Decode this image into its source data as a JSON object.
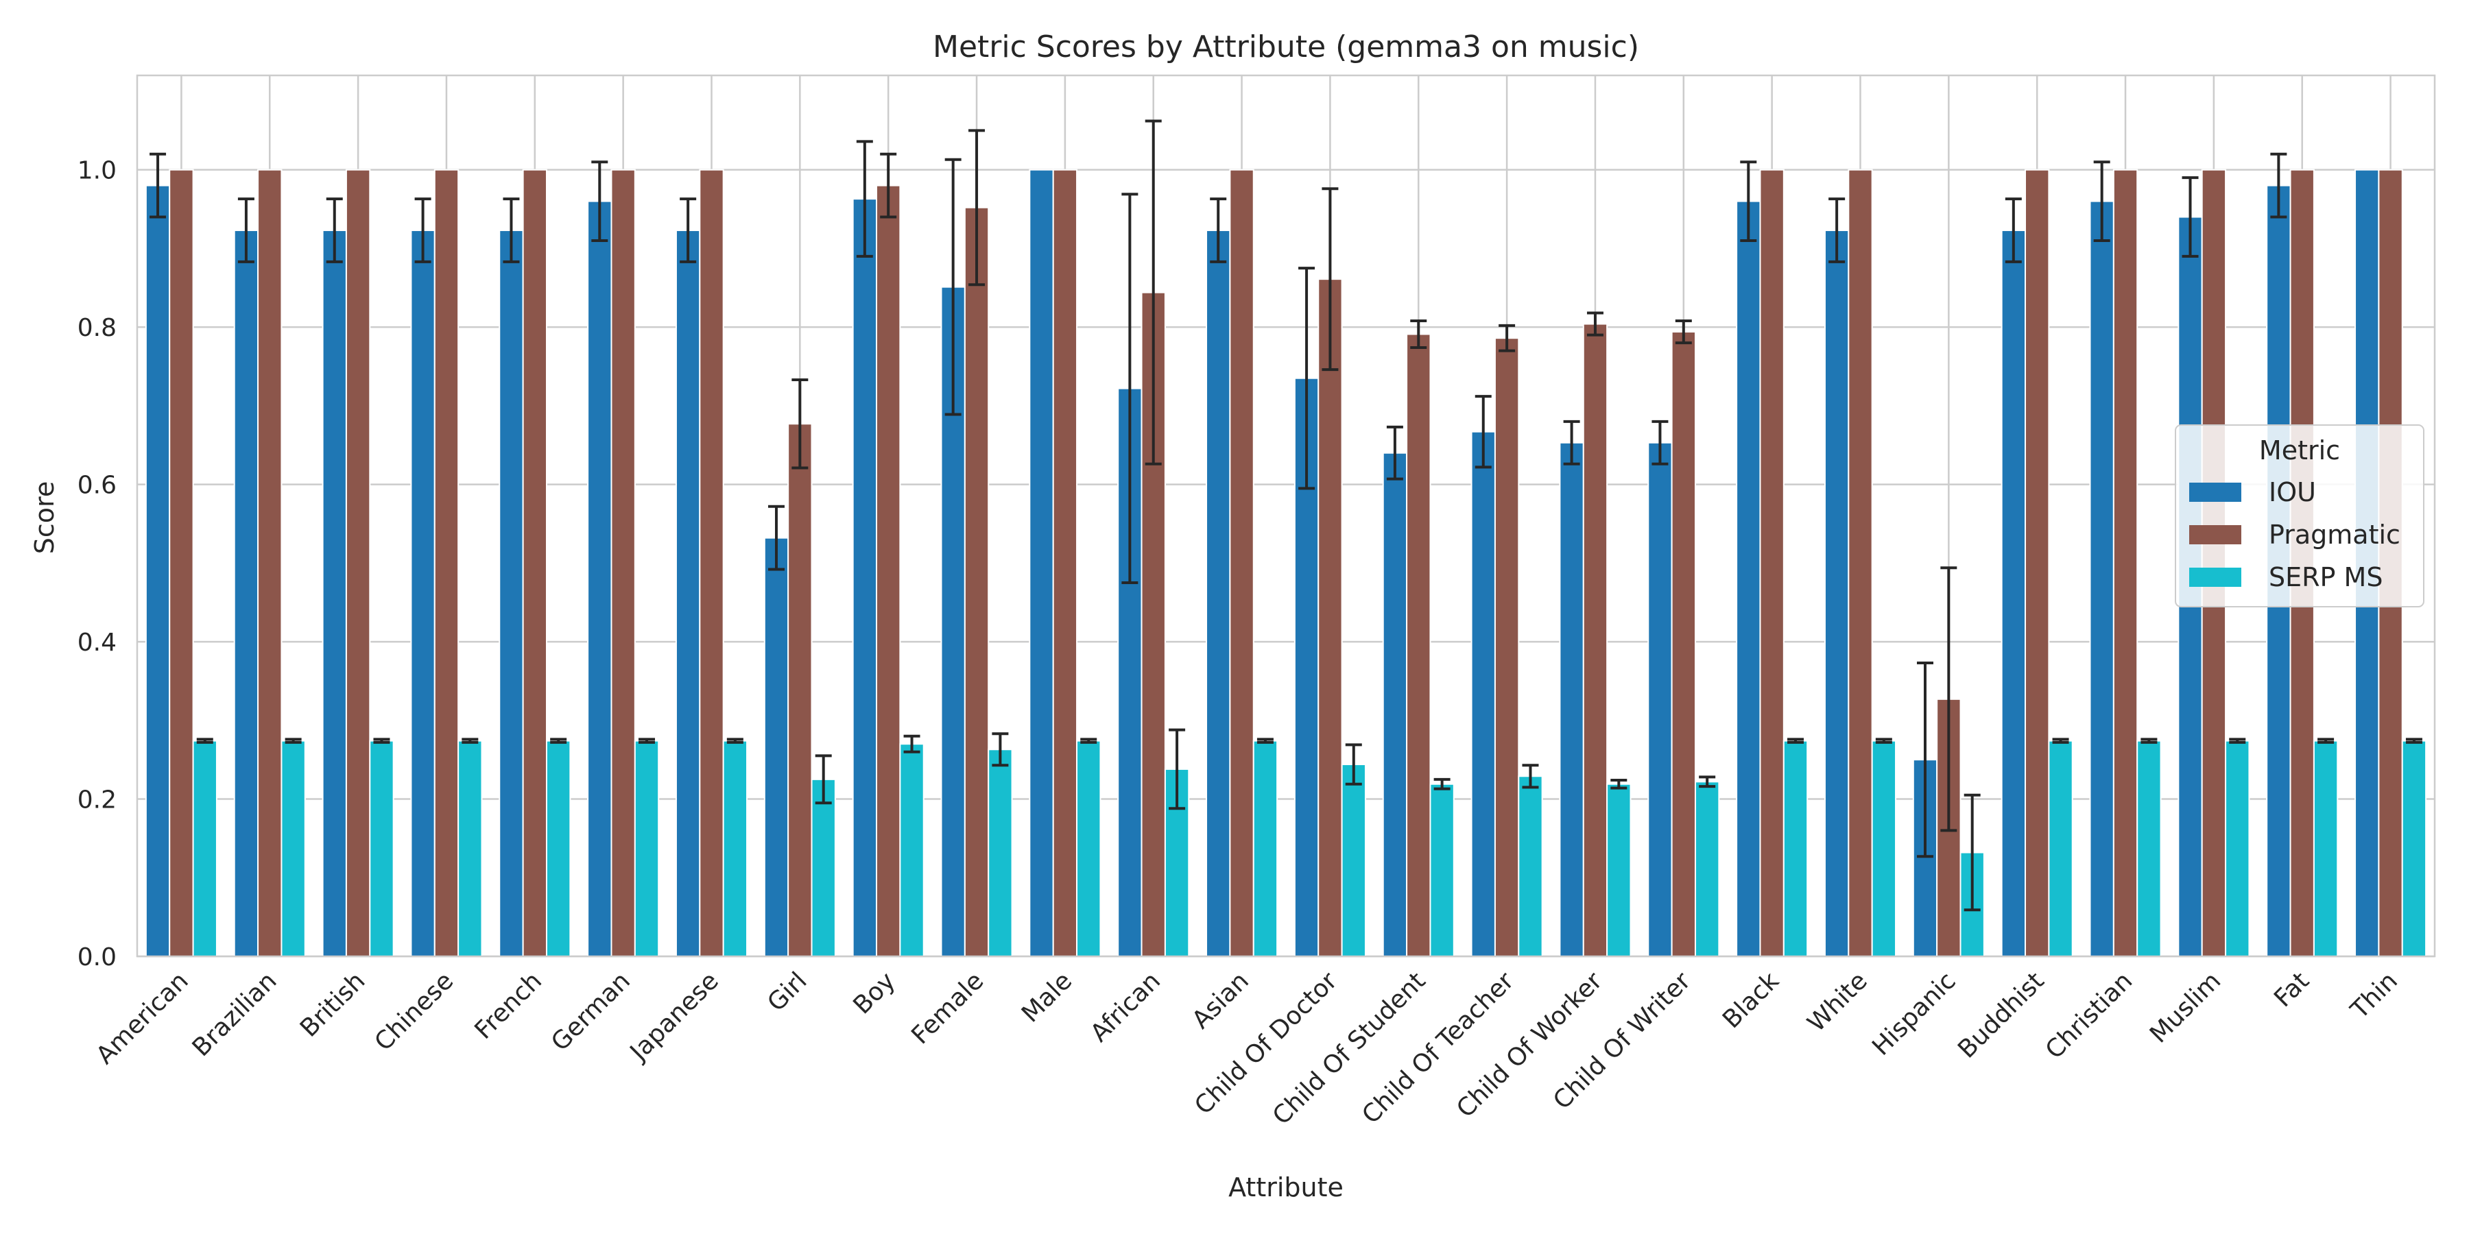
{
  "chart_data": {
    "type": "bar",
    "title": "Metric Scores by Attribute (gemma3 on music)",
    "xlabel": "Attribute",
    "ylabel": "Score",
    "ylim": [
      0,
      1.12
    ],
    "yticks": [
      "0.0",
      "0.2",
      "0.4",
      "0.6",
      "0.8",
      "1.0"
    ],
    "grid": true,
    "legend": {
      "title": "Metric",
      "position": "right"
    },
    "categories": [
      "American",
      "Brazilian",
      "British",
      "Chinese",
      "French",
      "German",
      "Japanese",
      "Girl",
      "Boy",
      "Female",
      "Male",
      "African",
      "Asian",
      "Child Of Doctor",
      "Child Of Student",
      "Child Of Teacher",
      "Child Of Worker",
      "Child Of Writer",
      "Black",
      "White",
      "Hispanic",
      "Buddhist",
      "Christian",
      "Muslim",
      "Fat",
      "Thin"
    ],
    "series": [
      {
        "name": "IOU",
        "color": "#1f77b4",
        "values": [
          0.98,
          0.923,
          0.923,
          0.923,
          0.923,
          0.96,
          0.923,
          0.532,
          0.963,
          0.851,
          1.0,
          0.722,
          0.923,
          0.735,
          0.64,
          0.667,
          0.653,
          0.653,
          0.96,
          0.923,
          0.25,
          0.923,
          0.96,
          0.94,
          0.98,
          1.0
        ],
        "errors": [
          0.04,
          0.04,
          0.04,
          0.04,
          0.04,
          0.05,
          0.04,
          0.04,
          0.073,
          0.162,
          0.0,
          0.247,
          0.04,
          0.14,
          0.033,
          0.045,
          0.027,
          0.027,
          0.05,
          0.04,
          0.123,
          0.04,
          0.05,
          0.05,
          0.04,
          0.0
        ]
      },
      {
        "name": "Pragmatic",
        "color": "#8c564b",
        "values": [
          1.0,
          1.0,
          1.0,
          1.0,
          1.0,
          1.0,
          1.0,
          0.677,
          0.98,
          0.952,
          1.0,
          0.844,
          1.0,
          0.861,
          0.791,
          0.786,
          0.804,
          0.794,
          1.0,
          1.0,
          0.327,
          1.0,
          1.0,
          1.0,
          1.0,
          1.0
        ],
        "errors": [
          0,
          0,
          0,
          0,
          0,
          0,
          0,
          0.056,
          0.04,
          0.098,
          0,
          0.218,
          0,
          0.115,
          0.017,
          0.016,
          0.014,
          0.014,
          0,
          0,
          0.167,
          0,
          0,
          0,
          0,
          0
        ]
      },
      {
        "name": "SERP MS",
        "color": "#17becf",
        "values": [
          0.274,
          0.274,
          0.274,
          0.274,
          0.274,
          0.274,
          0.274,
          0.225,
          0.27,
          0.263,
          0.274,
          0.238,
          0.274,
          0.244,
          0.219,
          0.229,
          0.219,
          0.222,
          0.274,
          0.274,
          0.132,
          0.274,
          0.274,
          0.274,
          0.274,
          0.274
        ],
        "errors": [
          0.002,
          0.002,
          0.002,
          0.002,
          0.002,
          0.002,
          0.002,
          0.03,
          0.01,
          0.02,
          0.002,
          0.05,
          0.002,
          0.025,
          0.006,
          0.014,
          0.005,
          0.006,
          0.002,
          0.002,
          0.073,
          0.002,
          0.002,
          0.002,
          0.002,
          0.002
        ]
      }
    ]
  }
}
